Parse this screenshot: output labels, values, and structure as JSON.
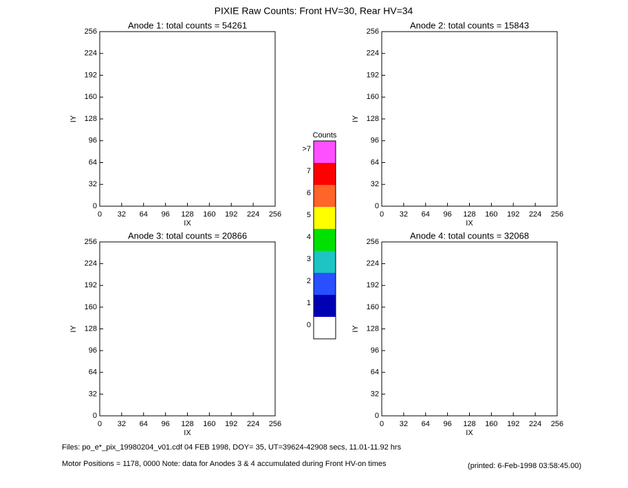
{
  "title": "PIXIE Raw Counts:  Front HV=30, Rear HV=34",
  "chart_data": [
    {
      "type": "heatmap",
      "title": "Anode 1: total counts = 54261",
      "xlabel": "IX",
      "ylabel": "IY",
      "xlim": [
        0,
        256
      ],
      "ylim": [
        0,
        256
      ],
      "xticks": [
        0,
        32,
        64,
        96,
        128,
        160,
        192,
        224,
        256
      ],
      "yticks": [
        0,
        32,
        64,
        96,
        128,
        160,
        192,
        224,
        256
      ]
    },
    {
      "type": "heatmap",
      "title": "Anode 2: total counts = 15843",
      "xlabel": "IX",
      "ylabel": "IY",
      "xlim": [
        0,
        256
      ],
      "ylim": [
        0,
        256
      ],
      "xticks": [
        0,
        32,
        64,
        96,
        128,
        160,
        192,
        224,
        256
      ],
      "yticks": [
        0,
        32,
        64,
        96,
        128,
        160,
        192,
        224,
        256
      ]
    },
    {
      "type": "heatmap",
      "title": "Anode 3: total counts = 20866",
      "xlabel": "IX",
      "ylabel": "IY",
      "xlim": [
        0,
        256
      ],
      "ylim": [
        0,
        256
      ],
      "xticks": [
        0,
        32,
        64,
        96,
        128,
        160,
        192,
        224,
        256
      ],
      "yticks": [
        0,
        32,
        64,
        96,
        128,
        160,
        192,
        224,
        256
      ]
    },
    {
      "type": "heatmap",
      "title": "Anode 4: total counts = 32068",
      "xlabel": "IX",
      "ylabel": "IY",
      "xlim": [
        0,
        256
      ],
      "ylim": [
        0,
        256
      ],
      "xticks": [
        0,
        32,
        64,
        96,
        128,
        160,
        192,
        224,
        256
      ],
      "yticks": [
        0,
        32,
        64,
        96,
        128,
        160,
        192,
        224,
        256
      ]
    },
    {
      "type": "colorbar",
      "title": "Counts",
      "categories": [
        "0",
        "1",
        "2",
        "3",
        "4",
        "5",
        "6",
        "7",
        ">7"
      ],
      "colors": [
        "#ffffff",
        "#0000b4",
        "#2850ff",
        "#1ec3c3",
        "#00e100",
        "#ffff00",
        "#ff6428",
        "#ff0000",
        "#ff50ff"
      ]
    }
  ],
  "footer": {
    "files": "Files: po_e*_pix_19980204_v01.cdf    04 FEB 1998, DOY= 35, UT=39624-42908 secs, 11.01-11.92 hrs",
    "motor": "Motor Positions = 1178, 0000    Note: data for Anodes 3 & 4 accumulated during Front HV-on times",
    "printed": "(printed:  6-Feb-1998 03:58:45.00)"
  }
}
